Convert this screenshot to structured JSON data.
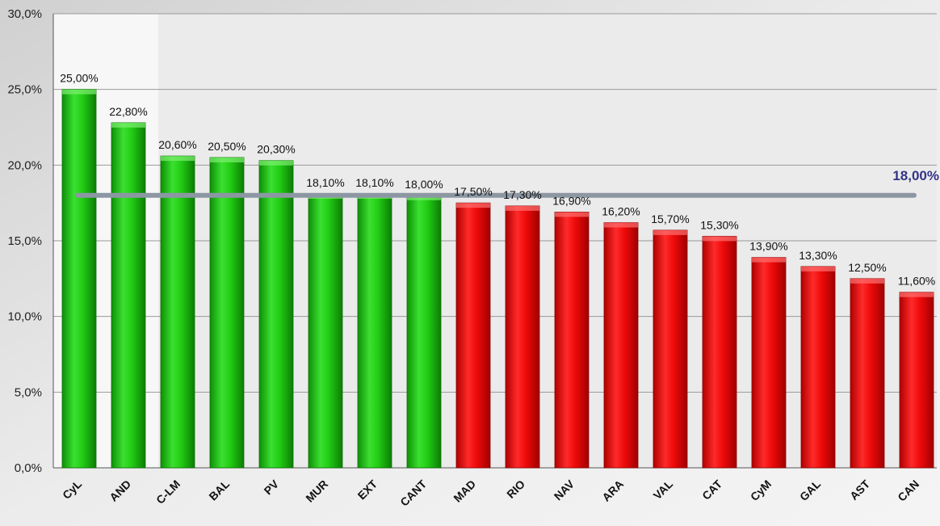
{
  "chart_data": {
    "type": "bar",
    "title": "",
    "xlabel": "",
    "ylabel": "",
    "ylim": [
      0,
      30
    ],
    "yticks": [
      "0,0%",
      "5,0%",
      "10,0%",
      "15,0%",
      "20,0%",
      "25,0%",
      "30,0%"
    ],
    "ytick_values": [
      0,
      5,
      10,
      15,
      20,
      25,
      30
    ],
    "grid": true,
    "categories": [
      "CyL",
      "AND",
      "C-LM",
      "BAL",
      "PV",
      "MUR",
      "EXT",
      "CANT",
      "MAD",
      "RIO",
      "NAV",
      "ARA",
      "VAL",
      "CAT",
      "CyM",
      "GAL",
      "AST",
      "CAN"
    ],
    "values": [
      25.0,
      22.8,
      20.6,
      20.5,
      20.3,
      18.1,
      18.1,
      18.0,
      17.5,
      17.3,
      16.9,
      16.2,
      15.7,
      15.3,
      13.9,
      13.3,
      12.5,
      11.6
    ],
    "data_labels": [
      "25,00%",
      "22,80%",
      "20,60%",
      "20,50%",
      "20,30%",
      "18,10%",
      "18,10%",
      "18,00%",
      "17,50%",
      "17,30%",
      "16,90%",
      "16,20%",
      "15,70%",
      "15,30%",
      "13,90%",
      "13,30%",
      "12,50%",
      "11,60%"
    ],
    "colors": {
      "above_or_equal_reference": "#22cc14",
      "below_reference": "#ee0a0a",
      "reference_line": "#8c97a3",
      "reference_label": "#33338a"
    },
    "reference_line": {
      "value": 18.0,
      "label": "18,00%"
    }
  }
}
